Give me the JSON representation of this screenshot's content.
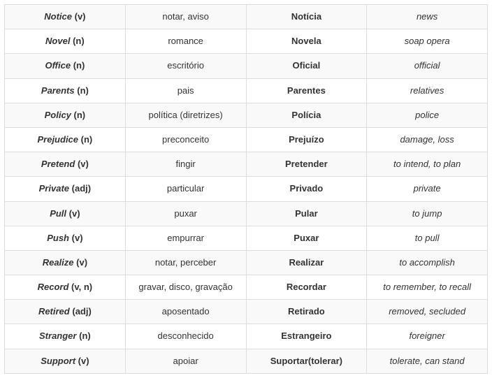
{
  "table": {
    "type": "table",
    "columns": [
      {
        "key": "english_word",
        "style": "bold-italic-word-with-pos",
        "width": "25%"
      },
      {
        "key": "portuguese_translation",
        "style": "normal",
        "width": "25%"
      },
      {
        "key": "portuguese_false_cognate",
        "style": "bold",
        "width": "25%"
      },
      {
        "key": "false_cognate_english_meaning",
        "style": "italic",
        "width": "25%"
      }
    ],
    "background_colors": {
      "odd": "#f9f9f9",
      "even": "#ffffff"
    },
    "border_color": "#dddddd",
    "text_color": "#333333",
    "fontsize": 13,
    "rows": [
      {
        "word": "Notice",
        "pos": "(v)",
        "trans": "notar, aviso",
        "false": "Notícia",
        "meaning": "news"
      },
      {
        "word": "Novel",
        "pos": "(n)",
        "trans": "romance",
        "false": "Novela",
        "meaning": "soap opera"
      },
      {
        "word": "Office",
        "pos": "(n)",
        "trans": "escritório",
        "false": "Oficial",
        "meaning": "official"
      },
      {
        "word": "Parents",
        "pos": "(n)",
        "trans": "pais",
        "false": "Parentes",
        "meaning": "relatives"
      },
      {
        "word": "Policy",
        "pos": "(n)",
        "trans": "política (diretrizes)",
        "false": "Polícia",
        "meaning": "police"
      },
      {
        "word": "Prejudice",
        "pos": "(n)",
        "trans": "preconceito",
        "false": "Prejuízo",
        "meaning": "damage, loss"
      },
      {
        "word": "Pretend",
        "pos": "(v)",
        "trans": "fingir",
        "false": "Pretender",
        "meaning": "to intend, to plan"
      },
      {
        "word": "Private",
        "pos": "(adj)",
        "trans": "particular",
        "false": "Privado",
        "meaning": "private"
      },
      {
        "word": "Pull",
        "pos": "(v)",
        "trans": "puxar",
        "false": "Pular",
        "meaning": "to jump"
      },
      {
        "word": "Push",
        "pos": "(v)",
        "trans": "empurrar",
        "false": "Puxar",
        "meaning": "to pull"
      },
      {
        "word": "Realize",
        "pos": "(v)",
        "trans": "notar, perceber",
        "false": "Realizar",
        "meaning": "to accomplish"
      },
      {
        "word": "Record",
        "pos": "(v, n)",
        "trans": "gravar, disco, gravação",
        "false": "Recordar",
        "meaning": "to remember, to recall"
      },
      {
        "word": "Retired",
        "pos": "(adj)",
        "trans": "aposentado",
        "false": "Retirado",
        "meaning": "removed, secluded"
      },
      {
        "word": "Stranger",
        "pos": "(n)",
        "trans": "desconhecido",
        "false": "Estrangeiro",
        "meaning": "foreigner"
      },
      {
        "word": "Support",
        "pos": "(v)",
        "trans": "apoiar",
        "false": "Suportar(tolerar)",
        "meaning": "tolerate, can stand"
      }
    ]
  }
}
